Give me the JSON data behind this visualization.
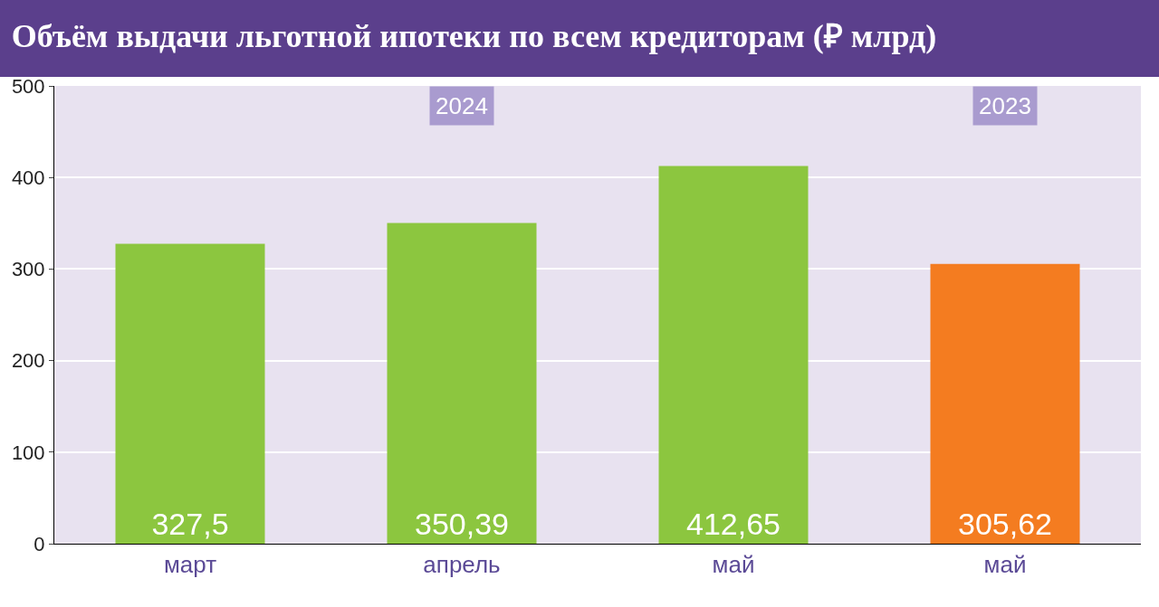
{
  "chart_data": {
    "type": "bar",
    "title": "Объём выдачи льготной ипотеки по всем кредиторам (₽ млрд)",
    "categories": [
      "март",
      "апрель",
      "май",
      "май"
    ],
    "values": [
      327.5,
      350.39,
      412.65,
      305.62
    ],
    "colors": [
      "#8cc63f",
      "#8cc63f",
      "#8cc63f",
      "#f47c20"
    ],
    "value_labels": [
      "327,5",
      "350,39",
      "412,65",
      "305,62"
    ],
    "ylim": [
      0,
      500
    ],
    "yticks": [
      0,
      100,
      200,
      300,
      400,
      500
    ],
    "grid": "y",
    "annotations": [
      "2024",
      "2023"
    ]
  }
}
